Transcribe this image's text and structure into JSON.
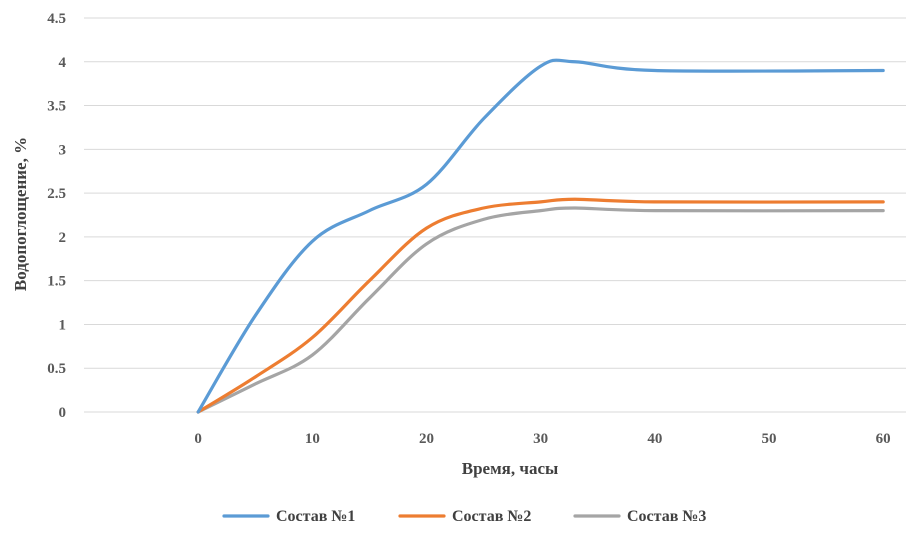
{
  "chart_data": {
    "type": "line",
    "xlabel": "Время, часы",
    "ylabel": "Водопоглощение,  %",
    "xlim": [
      -10,
      62
    ],
    "ylim": [
      0,
      4.5
    ],
    "x_ticks": [
      "0",
      "10",
      "20",
      "30",
      "40",
      "50",
      "60"
    ],
    "y_ticks": [
      "0",
      "0.5",
      "1",
      "1.5",
      "2",
      "2.5",
      "3",
      "3.5",
      "4",
      "4.5"
    ],
    "grid": true,
    "legend_position": "bottom",
    "series": [
      {
        "name": "Состав №1",
        "color": "#5b9bd5",
        "x": [
          0,
          5,
          10,
          15,
          20,
          25,
          30,
          33,
          40,
          60
        ],
        "y": [
          0,
          1.1,
          1.95,
          2.3,
          2.6,
          3.35,
          3.95,
          4.0,
          3.9,
          3.9
        ]
      },
      {
        "name": "Состав №2",
        "color": "#ed7d31",
        "x": [
          0,
          5,
          10,
          15,
          20,
          25,
          30,
          33,
          40,
          60
        ],
        "y": [
          0,
          0.4,
          0.85,
          1.5,
          2.1,
          2.33,
          2.4,
          2.43,
          2.4,
          2.4
        ]
      },
      {
        "name": "Состав №3",
        "color": "#a5a5a5",
        "x": [
          0,
          5,
          10,
          15,
          20,
          25,
          30,
          33,
          40,
          60
        ],
        "y": [
          0,
          0.32,
          0.65,
          1.3,
          1.92,
          2.2,
          2.3,
          2.33,
          2.3,
          2.3
        ]
      }
    ]
  }
}
